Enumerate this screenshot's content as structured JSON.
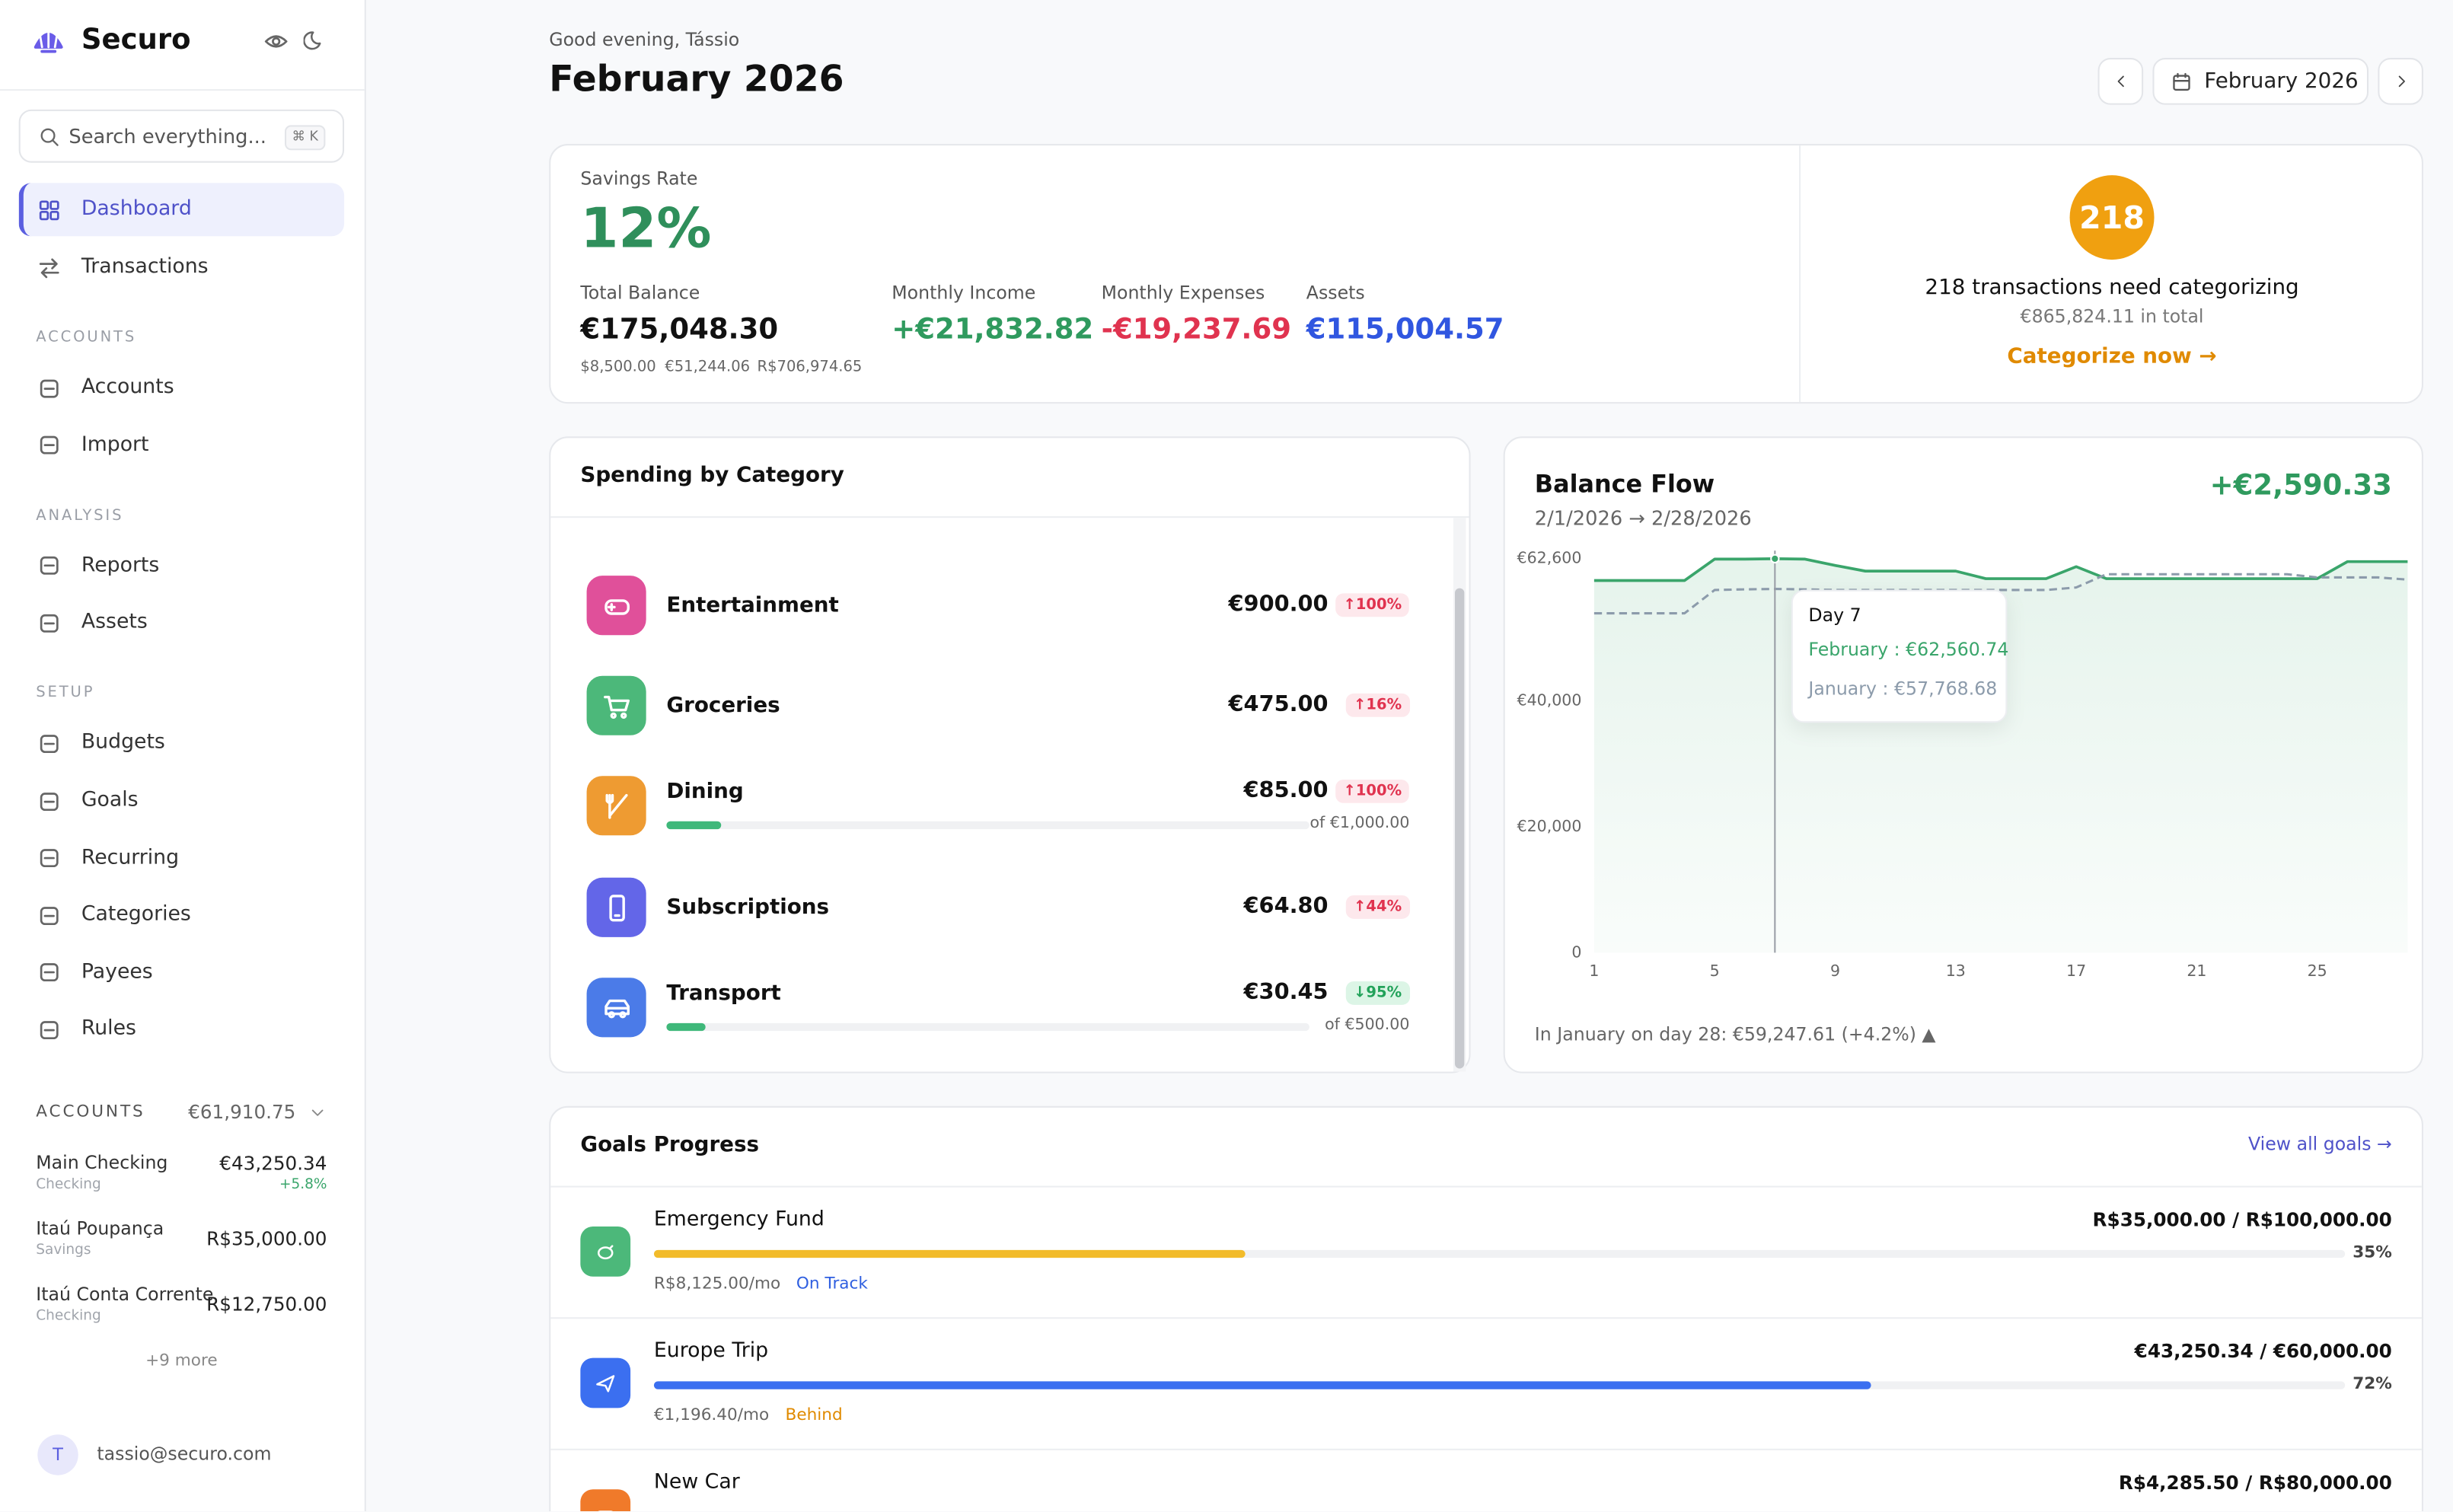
{
  "sidebar": {
    "brand": "Securo",
    "search_placeholder": "Search everything...",
    "shortcut": "⌘ K",
    "nav": [
      {
        "label": "Dashboard",
        "active": true
      },
      {
        "label": "Transactions"
      }
    ],
    "sections": [
      {
        "title": "ACCOUNTS",
        "items": [
          "Accounts",
          "Import"
        ]
      },
      {
        "title": "ANALYSIS",
        "items": [
          "Reports",
          "Assets"
        ]
      },
      {
        "title": "SETUP",
        "items": [
          "Budgets",
          "Goals",
          "Recurring",
          "Categories",
          "Payees",
          "Rules"
        ]
      }
    ],
    "accounts": {
      "title": "ACCOUNTS",
      "total": "€61,910.75",
      "items": [
        {
          "name": "Main Checking",
          "type": "Checking",
          "balance": "€43,250.34",
          "change": "+5.8%"
        },
        {
          "name": "Itaú Poupança",
          "type": "Savings",
          "balance": "R$35,000.00"
        },
        {
          "name": "Itaú Conta Corrente",
          "type": "Checking",
          "balance": "R$12,750.00"
        }
      ],
      "more": "+9 more"
    },
    "user": {
      "initial": "T",
      "email": "tassio@securo.com"
    }
  },
  "header": {
    "greeting": "Good evening, Tássio",
    "title": "February 2026",
    "period": "February 2026"
  },
  "summary": {
    "savings_rate": {
      "label": "Savings Rate",
      "value": "12%"
    },
    "metrics": [
      {
        "label": "Total Balance",
        "value": "€175,048.30",
        "color": "#111111"
      },
      {
        "label": "Monthly Income",
        "value": "+€21,832.82",
        "color": "#2f9a5e"
      },
      {
        "label": "Monthly Expenses",
        "value": "-€19,237.69",
        "color": "#e0334f"
      },
      {
        "label": "Assets",
        "value": "€115,004.57",
        "color": "#3056e0"
      }
    ],
    "balance_breakdown": [
      "$8,500.00",
      "€51,244.06",
      "R$706,974.65"
    ]
  },
  "categorize": {
    "count": "218",
    "message": "218 transactions need categorizing",
    "total": "€865,824.11 in total",
    "action": "Categorize now →"
  },
  "spending": {
    "title": "Spending by Category",
    "items": [
      {
        "name": "Entertainment",
        "amount": "€900.00",
        "change": "↑100%",
        "trend": "up",
        "color": "#e0509a"
      },
      {
        "name": "Groceries",
        "amount": "€475.00",
        "change": "↑16%",
        "trend": "up",
        "color": "#4cb87a"
      },
      {
        "name": "Dining",
        "amount": "€85.00",
        "change": "↑100%",
        "trend": "up",
        "color": "#ee9b32",
        "budget": "of €1,000.00",
        "progress": 8.5
      },
      {
        "name": "Subscriptions",
        "amount": "€64.80",
        "change": "↑44%",
        "trend": "up",
        "color": "#6366e8"
      },
      {
        "name": "Transport",
        "amount": "€30.45",
        "change": "↓95%",
        "trend": "down",
        "color": "#4b7be8",
        "budget": "of €500.00",
        "progress": 6.09
      }
    ]
  },
  "chart_data": {
    "type": "line",
    "title": "Balance Flow",
    "subtitle": "2/1/2026 → 2/28/2026",
    "change": "+€2,590.33",
    "x": [
      1,
      2,
      3,
      4,
      5,
      6,
      7,
      8,
      9,
      10,
      11,
      12,
      13,
      14,
      15,
      16,
      17,
      18,
      19,
      20,
      21,
      22,
      23,
      24,
      25,
      26,
      27,
      28
    ],
    "xlim": [
      1,
      28
    ],
    "xticks": [
      1,
      5,
      9,
      13,
      17,
      21,
      25
    ],
    "ylim": [
      0,
      62600
    ],
    "yticks": [
      0,
      {
        "value": 20000,
        "label": "€20,000"
      },
      {
        "value": 40000,
        "label": "€40,000"
      },
      {
        "value": 62600,
        "label": "€62,600"
      }
    ],
    "grid": false,
    "series": [
      {
        "name": "February",
        "color": "#3aa56b",
        "area": true,
        "values": [
          59100,
          59100,
          59100,
          59100,
          62500,
          62500,
          62560.74,
          62500,
          61500,
          60600,
          60600,
          60600,
          60600,
          59400,
          59400,
          59400,
          61300,
          59400,
          59400,
          59400,
          59400,
          59400,
          59400,
          59400,
          59400,
          62100,
          62100,
          62100
        ]
      },
      {
        "name": "January",
        "color": "#8c9bab",
        "dashed": true,
        "values": [
          53900,
          53900,
          53900,
          53900,
          57600,
          57700,
          57768.68,
          57700,
          57600,
          57600,
          57600,
          57600,
          57600,
          57600,
          57600,
          57600,
          58000,
          60100,
          60100,
          60100,
          60100,
          60100,
          60100,
          60100,
          59600,
          59600,
          59600,
          59247.61
        ]
      }
    ],
    "tooltip": {
      "title": "Day 7",
      "index": 6,
      "values": [
        "€62,560.74",
        "€57,768.68"
      ]
    },
    "note": "In January on day 28: €59,247.61 (+4.2%) ▲"
  },
  "goals": {
    "title": "Goals Progress",
    "link": "View all goals →",
    "items": [
      {
        "name": "Emergency Fund",
        "amount": "R$35,000.00 / R$100,000.00",
        "progress": 35,
        "progress_label": "35%",
        "monthly": "R$8,125.00/mo",
        "status": "On Track",
        "status_color": "#2f5fe0",
        "color": "#4cb87a",
        "bar_color": "#f2bb2a"
      },
      {
        "name": "Europe Trip",
        "amount": "€43,250.34 / €60,000.00",
        "progress": 72,
        "progress_label": "72%",
        "monthly": "€1,196.40/mo",
        "status": "Behind",
        "status_color": "#e08a00",
        "color": "#3b6ff0",
        "bar_color": "#3b6ff0"
      },
      {
        "name": "New Car",
        "amount": "R$4,285.50 / R$80,000.00",
        "color": "#f07a2a"
      }
    ]
  }
}
